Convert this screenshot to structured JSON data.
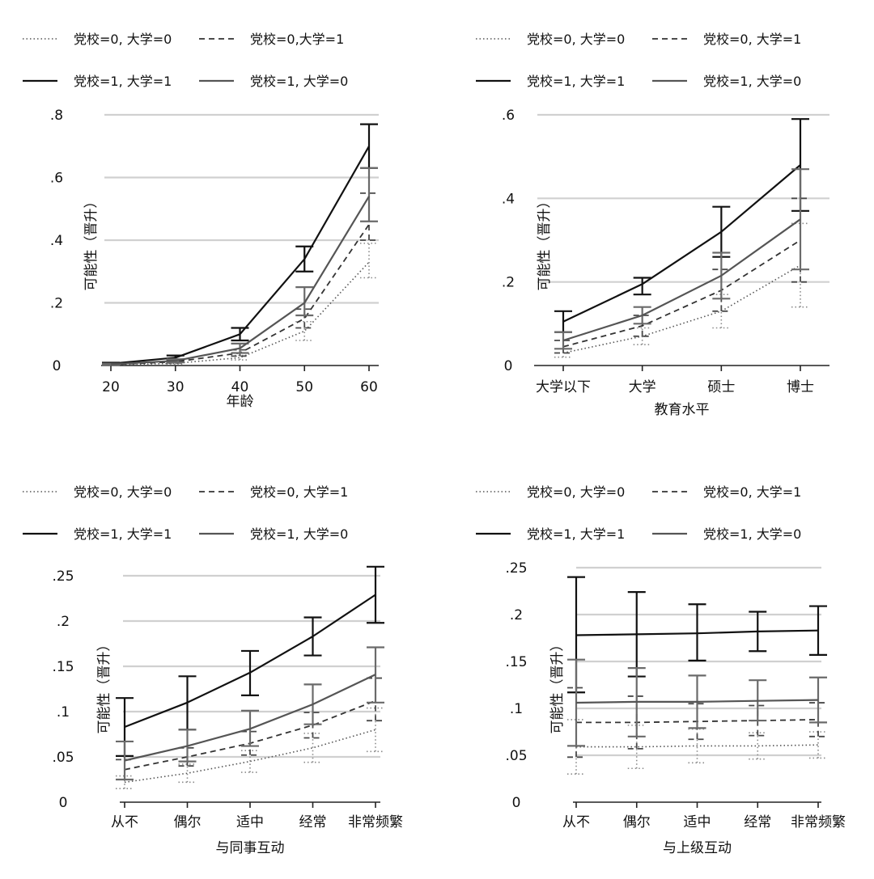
{
  "chart_data": [
    {
      "type": "line",
      "title": "",
      "xlabel": "年龄",
      "ylabel": "可能性（晋升）",
      "x_type": "numeric",
      "xlim": [
        20,
        60
      ],
      "x_ticks": [
        "20",
        "30",
        "40",
        "50",
        "60"
      ],
      "x": [
        20,
        30,
        40,
        50,
        60
      ],
      "ylim": [
        0,
        0.8
      ],
      "y_ticks": [
        0,
        0.2,
        0.4,
        0.6,
        0.8
      ],
      "y_tick_labels": [
        "0",
        ".2",
        ".4",
        ".6",
        ".8"
      ],
      "error_bars": true,
      "series": [
        {
          "name": "党校=0, 大学=0",
          "style": "dotted",
          "values": [
            0.002,
            0.007,
            0.025,
            0.11,
            0.33
          ],
          "ci_low": [
            0.0,
            0.004,
            0.018,
            0.08,
            0.28
          ],
          "ci_high": [
            0.004,
            0.01,
            0.032,
            0.14,
            0.39
          ]
        },
        {
          "name": "党校=0,大学=1",
          "style": "dashed",
          "values": [
            0.003,
            0.012,
            0.04,
            0.15,
            0.45
          ],
          "ci_low": [
            0.001,
            0.008,
            0.03,
            0.12,
            0.4
          ],
          "ci_high": [
            0.005,
            0.016,
            0.05,
            0.18,
            0.55
          ]
        },
        {
          "name": "党校=1, 大学=1",
          "style": "solid-black",
          "values": [
            0.006,
            0.025,
            0.1,
            0.34,
            0.7
          ],
          "ci_low": [
            0.003,
            0.018,
            0.08,
            0.3,
            0.63
          ],
          "ci_high": [
            0.009,
            0.032,
            0.12,
            0.38,
            0.77
          ]
        },
        {
          "name": "党校=1, 大学=0",
          "style": "solid-gray",
          "values": [
            0.004,
            0.015,
            0.055,
            0.2,
            0.54
          ],
          "ci_low": [
            0.002,
            0.01,
            0.04,
            0.16,
            0.46
          ],
          "ci_high": [
            0.006,
            0.02,
            0.07,
            0.25,
            0.63
          ]
        }
      ]
    },
    {
      "type": "line",
      "title": "",
      "xlabel": "教育水平",
      "ylabel": "可能性（晋升）",
      "x_type": "categorical",
      "categories": [
        "大学以下",
        "大学",
        "硕士",
        "博士"
      ],
      "ylim": [
        0,
        0.6
      ],
      "y_ticks": [
        0,
        0.2,
        0.4,
        0.6
      ],
      "y_tick_labels": [
        "0",
        ".2",
        ".4",
        ".6"
      ],
      "error_bars": true,
      "series": [
        {
          "name": "党校=0, 大学=0",
          "style": "dotted",
          "values": [
            0.03,
            0.07,
            0.13,
            0.24
          ],
          "ci_low": [
            0.02,
            0.05,
            0.09,
            0.14
          ],
          "ci_high": [
            0.04,
            0.09,
            0.17,
            0.34
          ]
        },
        {
          "name": "党校=0, 大学=1",
          "style": "dashed",
          "values": [
            0.045,
            0.095,
            0.18,
            0.3
          ],
          "ci_low": [
            0.03,
            0.07,
            0.13,
            0.2
          ],
          "ci_high": [
            0.06,
            0.12,
            0.23,
            0.4
          ]
        },
        {
          "name": "党校=1, 大学=1",
          "style": "solid-black",
          "values": [
            0.105,
            0.195,
            0.32,
            0.48
          ],
          "ci_low": [
            0.08,
            0.17,
            0.26,
            0.37
          ],
          "ci_high": [
            0.13,
            0.21,
            0.38,
            0.59
          ]
        },
        {
          "name": "党校=1, 大学=0",
          "style": "solid-gray",
          "values": [
            0.06,
            0.12,
            0.215,
            0.35
          ],
          "ci_low": [
            0.04,
            0.1,
            0.16,
            0.23
          ],
          "ci_high": [
            0.08,
            0.14,
            0.27,
            0.47
          ]
        }
      ]
    },
    {
      "type": "line",
      "title": "",
      "xlabel": "与同事互动",
      "ylabel": "可能性（晋升）",
      "x_type": "categorical",
      "categories": [
        "从不",
        "偶尔",
        "适中",
        "经常",
        "非常频繁"
      ],
      "ylim": [
        0,
        0.25
      ],
      "y_ticks": [
        0,
        0.05,
        0.1,
        0.15,
        0.2,
        0.25
      ],
      "y_tick_labels": [
        "0",
        ".05",
        ".1",
        ".15",
        ".2",
        ".25"
      ],
      "error_bars": true,
      "series": [
        {
          "name": "党校=0, 大学=0",
          "style": "dotted",
          "values": [
            0.022,
            0.032,
            0.045,
            0.06,
            0.08
          ],
          "ci_low": [
            0.015,
            0.022,
            0.033,
            0.044,
            0.056
          ],
          "ci_high": [
            0.029,
            0.042,
            0.057,
            0.076,
            0.104
          ]
        },
        {
          "name": "党校=0, 大学=1",
          "style": "dashed",
          "values": [
            0.036,
            0.05,
            0.065,
            0.085,
            0.112
          ],
          "ci_low": [
            0.025,
            0.04,
            0.052,
            0.071,
            0.09
          ],
          "ci_high": [
            0.047,
            0.06,
            0.078,
            0.099,
            0.137
          ]
        },
        {
          "name": "党校=1, 大学=1",
          "style": "solid-black",
          "values": [
            0.083,
            0.11,
            0.143,
            0.183,
            0.229
          ],
          "ci_low": [
            0.051,
            0.08,
            0.118,
            0.162,
            0.198
          ],
          "ci_high": [
            0.115,
            0.139,
            0.167,
            0.204,
            0.26
          ]
        },
        {
          "name": "党校=1, 大学=0",
          "style": "solid-gray",
          "values": [
            0.046,
            0.062,
            0.081,
            0.108,
            0.141
          ],
          "ci_low": [
            0.025,
            0.045,
            0.062,
            0.086,
            0.11
          ],
          "ci_high": [
            0.067,
            0.08,
            0.101,
            0.13,
            0.171
          ]
        }
      ]
    },
    {
      "type": "line",
      "title": "",
      "xlabel": "与上级互动",
      "ylabel": "可能性（晋升）",
      "x_type": "categorical",
      "categories": [
        "从不",
        "偶尔",
        "适中",
        "经常",
        "非常频繁"
      ],
      "ylim": [
        0,
        0.25
      ],
      "y_ticks": [
        0,
        0.05,
        0.1,
        0.15,
        0.2,
        0.25
      ],
      "y_tick_labels": [
        "0",
        ".05",
        ".1",
        ".15",
        ".2",
        ".25"
      ],
      "error_bars": true,
      "series": [
        {
          "name": "党校=0, 大学=0",
          "style": "dotted",
          "values": [
            0.059,
            0.059,
            0.06,
            0.06,
            0.061
          ],
          "ci_low": [
            0.03,
            0.036,
            0.042,
            0.046,
            0.047
          ],
          "ci_high": [
            0.088,
            0.082,
            0.078,
            0.074,
            0.075
          ]
        },
        {
          "name": "党校=0, 大学=1",
          "style": "dashed",
          "values": [
            0.085,
            0.085,
            0.086,
            0.087,
            0.088
          ],
          "ci_low": [
            0.048,
            0.057,
            0.067,
            0.071,
            0.07
          ],
          "ci_high": [
            0.122,
            0.113,
            0.105,
            0.103,
            0.106
          ]
        },
        {
          "name": "党校=1, 大学=1",
          "style": "solid-black",
          "values": [
            0.178,
            0.179,
            0.18,
            0.182,
            0.183
          ],
          "ci_low": [
            0.117,
            0.134,
            0.151,
            0.161,
            0.157
          ],
          "ci_high": [
            0.24,
            0.224,
            0.211,
            0.203,
            0.209
          ]
        },
        {
          "name": "党校=1, 大学=0",
          "style": "solid-gray",
          "values": [
            0.106,
            0.107,
            0.107,
            0.108,
            0.109
          ],
          "ci_low": [
            0.06,
            0.07,
            0.079,
            0.087,
            0.085
          ],
          "ci_high": [
            0.152,
            0.143,
            0.135,
            0.13,
            0.133
          ]
        }
      ]
    }
  ]
}
